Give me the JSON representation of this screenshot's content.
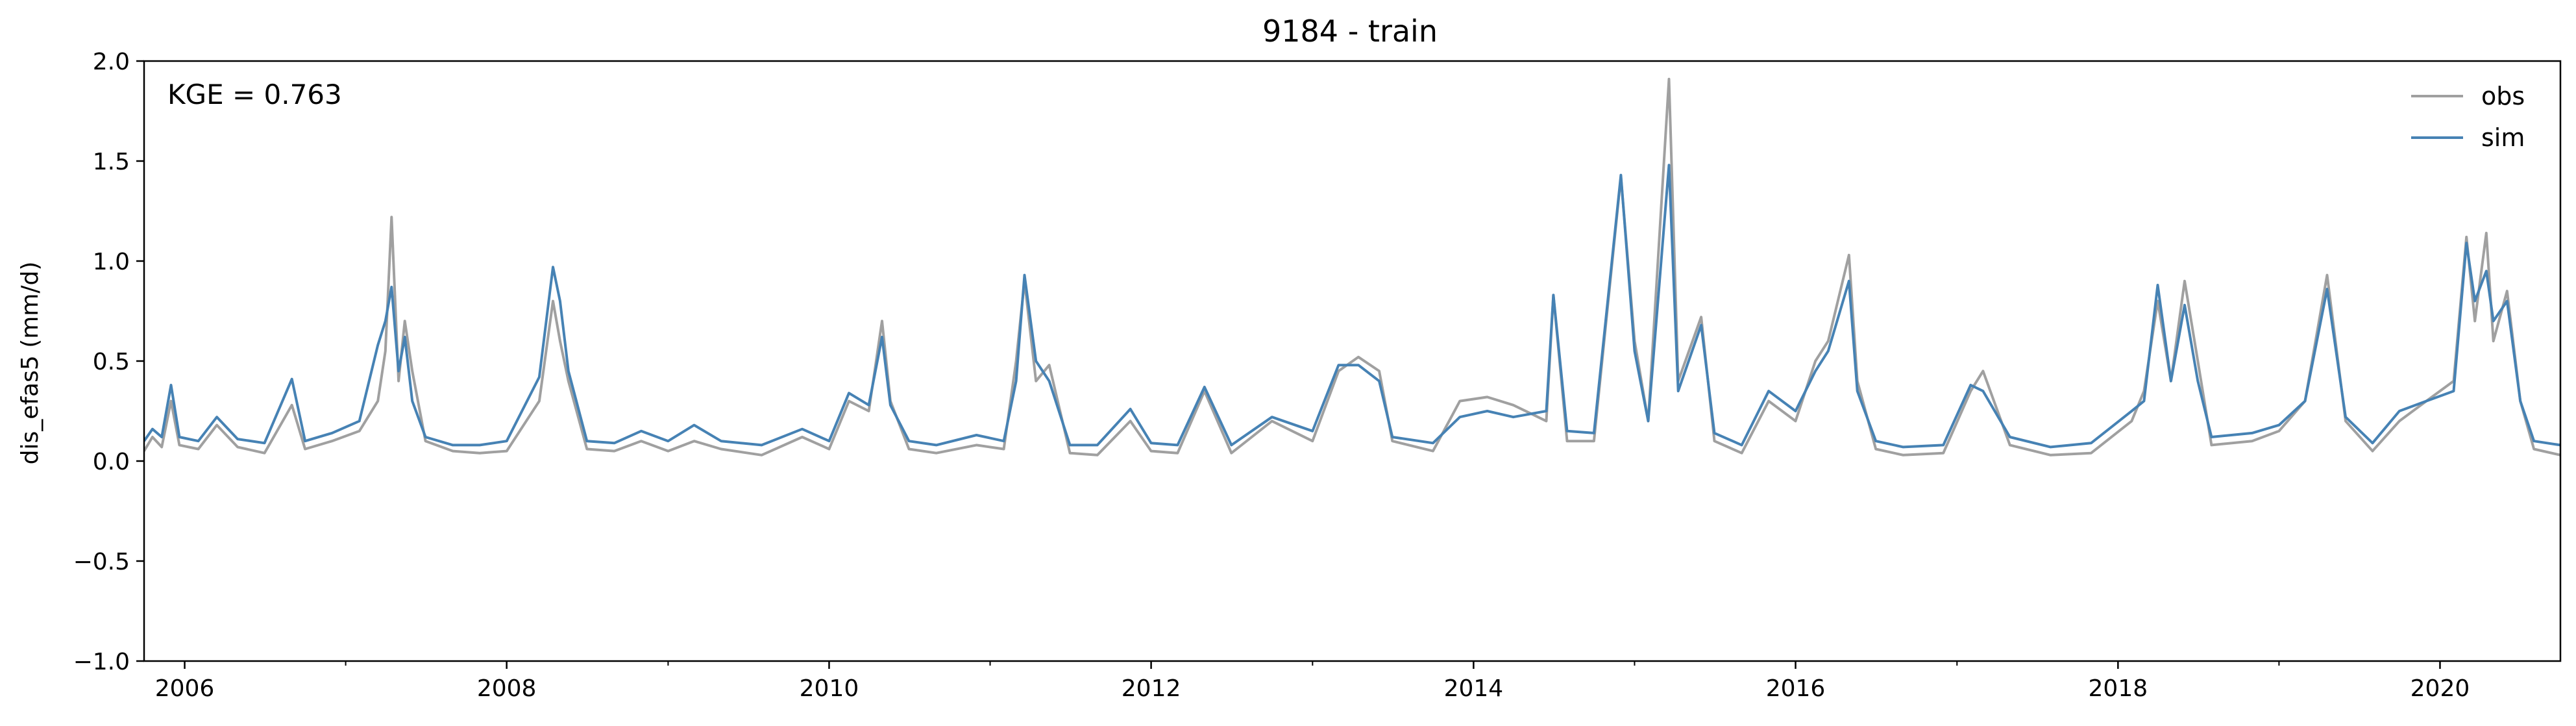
{
  "chart_data": {
    "type": "line",
    "title": "9184 - train",
    "xlabel": "",
    "ylabel": "dis_efas5 (mm/d)",
    "annotation": "KGE = 0.763",
    "x_range": [
      "2005-10-01",
      "2020-09-30"
    ],
    "ylim": [
      -1.0,
      2.0
    ],
    "yticks": [
      -1.0,
      -0.5,
      0.0,
      0.5,
      1.0,
      1.5,
      2.0
    ],
    "ytick_labels": [
      "−1.0",
      "−0.5",
      "0.0",
      "0.5",
      "1.0",
      "1.5",
      "2.0"
    ],
    "xticks": [
      "2006-01-01",
      "2008-01-01",
      "2010-01-01",
      "2012-01-01",
      "2014-01-01",
      "2016-01-01",
      "2018-01-01",
      "2020-01-01"
    ],
    "xtick_labels": [
      "2006",
      "2008",
      "2010",
      "2012",
      "2014",
      "2016",
      "2018",
      "2020"
    ],
    "x_minor_ticks": [
      "2007-01-01",
      "2009-01-01",
      "2011-01-01",
      "2013-01-01",
      "2015-01-01",
      "2017-01-01",
      "2019-01-01"
    ],
    "grid": false,
    "legend_position": "top-right",
    "series": [
      {
        "name": "obs",
        "color": "#a0a0a0",
        "points": [
          [
            "2005-10-01",
            0.05
          ],
          [
            "2005-10-20",
            0.12
          ],
          [
            "2005-11-10",
            0.07
          ],
          [
            "2005-12-01",
            0.3
          ],
          [
            "2005-12-20",
            0.08
          ],
          [
            "2006-02-01",
            0.06
          ],
          [
            "2006-03-15",
            0.18
          ],
          [
            "2006-05-01",
            0.07
          ],
          [
            "2006-07-01",
            0.04
          ],
          [
            "2006-09-01",
            0.28
          ],
          [
            "2006-10-01",
            0.06
          ],
          [
            "2006-12-01",
            0.1
          ],
          [
            "2007-02-01",
            0.15
          ],
          [
            "2007-03-15",
            0.3
          ],
          [
            "2007-04-01",
            0.55
          ],
          [
            "2007-04-15",
            1.22
          ],
          [
            "2007-05-01",
            0.4
          ],
          [
            "2007-05-15",
            0.7
          ],
          [
            "2007-06-01",
            0.45
          ],
          [
            "2007-07-01",
            0.1
          ],
          [
            "2007-09-01",
            0.05
          ],
          [
            "2007-11-01",
            0.04
          ],
          [
            "2008-01-01",
            0.05
          ],
          [
            "2008-03-15",
            0.3
          ],
          [
            "2008-04-15",
            0.8
          ],
          [
            "2008-05-01",
            0.6
          ],
          [
            "2008-05-20",
            0.4
          ],
          [
            "2008-07-01",
            0.06
          ],
          [
            "2008-09-01",
            0.05
          ],
          [
            "2008-11-01",
            0.1
          ],
          [
            "2009-01-01",
            0.05
          ],
          [
            "2009-03-01",
            0.1
          ],
          [
            "2009-05-01",
            0.06
          ],
          [
            "2009-08-01",
            0.03
          ],
          [
            "2009-11-01",
            0.12
          ],
          [
            "2010-01-01",
            0.06
          ],
          [
            "2010-02-15",
            0.3
          ],
          [
            "2010-04-01",
            0.25
          ],
          [
            "2010-05-01",
            0.7
          ],
          [
            "2010-05-20",
            0.3
          ],
          [
            "2010-07-01",
            0.06
          ],
          [
            "2010-09-01",
            0.04
          ],
          [
            "2010-12-01",
            0.08
          ],
          [
            "2011-02-01",
            0.06
          ],
          [
            "2011-03-01",
            0.5
          ],
          [
            "2011-03-20",
            0.9
          ],
          [
            "2011-04-15",
            0.4
          ],
          [
            "2011-05-15",
            0.48
          ],
          [
            "2011-07-01",
            0.04
          ],
          [
            "2011-09-01",
            0.03
          ],
          [
            "2011-11-15",
            0.2
          ],
          [
            "2012-01-01",
            0.05
          ],
          [
            "2012-03-01",
            0.04
          ],
          [
            "2012-05-01",
            0.35
          ],
          [
            "2012-07-01",
            0.04
          ],
          [
            "2012-10-01",
            0.2
          ],
          [
            "2013-01-01",
            0.1
          ],
          [
            "2013-03-01",
            0.45
          ],
          [
            "2013-04-15",
            0.52
          ],
          [
            "2013-06-01",
            0.45
          ],
          [
            "2013-07-01",
            0.1
          ],
          [
            "2013-10-01",
            0.05
          ],
          [
            "2013-12-01",
            0.3
          ],
          [
            "2014-02-01",
            0.32
          ],
          [
            "2014-04-01",
            0.28
          ],
          [
            "2014-06-15",
            0.2
          ],
          [
            "2014-07-01",
            0.83
          ],
          [
            "2014-08-01",
            0.1
          ],
          [
            "2014-10-01",
            0.1
          ],
          [
            "2014-12-01",
            1.42
          ],
          [
            "2015-01-01",
            0.6
          ],
          [
            "2015-02-01",
            0.2
          ],
          [
            "2015-03-20",
            1.91
          ],
          [
            "2015-04-10",
            0.4
          ],
          [
            "2015-06-01",
            0.72
          ],
          [
            "2015-07-01",
            0.1
          ],
          [
            "2015-09-01",
            0.04
          ],
          [
            "2015-11-01",
            0.3
          ],
          [
            "2016-01-01",
            0.2
          ],
          [
            "2016-02-15",
            0.5
          ],
          [
            "2016-03-15",
            0.6
          ],
          [
            "2016-05-01",
            1.03
          ],
          [
            "2016-05-20",
            0.4
          ],
          [
            "2016-07-01",
            0.06
          ],
          [
            "2016-09-01",
            0.03
          ],
          [
            "2016-12-01",
            0.04
          ],
          [
            "2017-02-01",
            0.35
          ],
          [
            "2017-03-01",
            0.45
          ],
          [
            "2017-05-01",
            0.08
          ],
          [
            "2017-08-01",
            0.03
          ],
          [
            "2017-11-01",
            0.04
          ],
          [
            "2018-02-01",
            0.2
          ],
          [
            "2018-03-01",
            0.35
          ],
          [
            "2018-04-01",
            0.8
          ],
          [
            "2018-05-01",
            0.4
          ],
          [
            "2018-06-01",
            0.9
          ],
          [
            "2018-07-01",
            0.5
          ],
          [
            "2018-08-01",
            0.08
          ],
          [
            "2018-11-01",
            0.1
          ],
          [
            "2019-01-01",
            0.15
          ],
          [
            "2019-03-01",
            0.3
          ],
          [
            "2019-04-20",
            0.93
          ],
          [
            "2019-06-01",
            0.2
          ],
          [
            "2019-08-01",
            0.05
          ],
          [
            "2019-10-01",
            0.2
          ],
          [
            "2019-12-01",
            0.3
          ],
          [
            "2020-02-01",
            0.4
          ],
          [
            "2020-03-01",
            1.12
          ],
          [
            "2020-03-20",
            0.7
          ],
          [
            "2020-04-15",
            1.14
          ],
          [
            "2020-05-01",
            0.6
          ],
          [
            "2020-06-01",
            0.85
          ],
          [
            "2020-07-01",
            0.3
          ],
          [
            "2020-08-01",
            0.06
          ],
          [
            "2020-09-30",
            0.03
          ]
        ]
      },
      {
        "name": "sim",
        "color": "#4682b4",
        "points": [
          [
            "2005-10-01",
            0.1
          ],
          [
            "2005-10-20",
            0.16
          ],
          [
            "2005-11-10",
            0.12
          ],
          [
            "2005-12-01",
            0.38
          ],
          [
            "2005-12-20",
            0.12
          ],
          [
            "2006-02-01",
            0.1
          ],
          [
            "2006-03-15",
            0.22
          ],
          [
            "2006-05-01",
            0.11
          ],
          [
            "2006-07-01",
            0.09
          ],
          [
            "2006-09-01",
            0.41
          ],
          [
            "2006-10-01",
            0.1
          ],
          [
            "2006-12-01",
            0.14
          ],
          [
            "2007-02-01",
            0.2
          ],
          [
            "2007-03-15",
            0.58
          ],
          [
            "2007-04-01",
            0.7
          ],
          [
            "2007-04-15",
            0.87
          ],
          [
            "2007-05-01",
            0.45
          ],
          [
            "2007-05-15",
            0.62
          ],
          [
            "2007-06-01",
            0.3
          ],
          [
            "2007-07-01",
            0.12
          ],
          [
            "2007-09-01",
            0.08
          ],
          [
            "2007-11-01",
            0.08
          ],
          [
            "2008-01-01",
            0.1
          ],
          [
            "2008-03-15",
            0.42
          ],
          [
            "2008-04-15",
            0.97
          ],
          [
            "2008-05-01",
            0.8
          ],
          [
            "2008-05-20",
            0.45
          ],
          [
            "2008-07-01",
            0.1
          ],
          [
            "2008-09-01",
            0.09
          ],
          [
            "2008-11-01",
            0.15
          ],
          [
            "2009-01-01",
            0.1
          ],
          [
            "2009-03-01",
            0.18
          ],
          [
            "2009-05-01",
            0.1
          ],
          [
            "2009-08-01",
            0.08
          ],
          [
            "2009-11-01",
            0.16
          ],
          [
            "2010-01-01",
            0.1
          ],
          [
            "2010-02-15",
            0.34
          ],
          [
            "2010-04-01",
            0.28
          ],
          [
            "2010-05-01",
            0.62
          ],
          [
            "2010-05-20",
            0.28
          ],
          [
            "2010-07-01",
            0.1
          ],
          [
            "2010-09-01",
            0.08
          ],
          [
            "2010-12-01",
            0.13
          ],
          [
            "2011-02-01",
            0.1
          ],
          [
            "2011-03-01",
            0.4
          ],
          [
            "2011-03-20",
            0.93
          ],
          [
            "2011-04-15",
            0.5
          ],
          [
            "2011-05-15",
            0.4
          ],
          [
            "2011-07-01",
            0.08
          ],
          [
            "2011-09-01",
            0.08
          ],
          [
            "2011-11-15",
            0.26
          ],
          [
            "2012-01-01",
            0.09
          ],
          [
            "2012-03-01",
            0.08
          ],
          [
            "2012-05-01",
            0.37
          ],
          [
            "2012-07-01",
            0.08
          ],
          [
            "2012-10-01",
            0.22
          ],
          [
            "2013-01-01",
            0.15
          ],
          [
            "2013-03-01",
            0.48
          ],
          [
            "2013-04-15",
            0.48
          ],
          [
            "2013-06-01",
            0.4
          ],
          [
            "2013-07-01",
            0.12
          ],
          [
            "2013-10-01",
            0.09
          ],
          [
            "2013-12-01",
            0.22
          ],
          [
            "2014-02-01",
            0.25
          ],
          [
            "2014-04-01",
            0.22
          ],
          [
            "2014-06-15",
            0.25
          ],
          [
            "2014-07-01",
            0.83
          ],
          [
            "2014-08-01",
            0.15
          ],
          [
            "2014-10-01",
            0.14
          ],
          [
            "2014-12-01",
            1.43
          ],
          [
            "2015-01-01",
            0.55
          ],
          [
            "2015-02-01",
            0.2
          ],
          [
            "2015-03-20",
            1.48
          ],
          [
            "2015-04-10",
            0.35
          ],
          [
            "2015-06-01",
            0.68
          ],
          [
            "2015-07-01",
            0.14
          ],
          [
            "2015-09-01",
            0.08
          ],
          [
            "2015-11-01",
            0.35
          ],
          [
            "2016-01-01",
            0.25
          ],
          [
            "2016-02-15",
            0.45
          ],
          [
            "2016-03-15",
            0.55
          ],
          [
            "2016-05-01",
            0.9
          ],
          [
            "2016-05-20",
            0.35
          ],
          [
            "2016-07-01",
            0.1
          ],
          [
            "2016-09-01",
            0.07
          ],
          [
            "2016-12-01",
            0.08
          ],
          [
            "2017-02-01",
            0.38
          ],
          [
            "2017-03-01",
            0.35
          ],
          [
            "2017-05-01",
            0.12
          ],
          [
            "2017-08-01",
            0.07
          ],
          [
            "2017-11-01",
            0.09
          ],
          [
            "2018-02-01",
            0.25
          ],
          [
            "2018-03-01",
            0.3
          ],
          [
            "2018-04-01",
            0.88
          ],
          [
            "2018-05-01",
            0.4
          ],
          [
            "2018-06-01",
            0.78
          ],
          [
            "2018-07-01",
            0.4
          ],
          [
            "2018-08-01",
            0.12
          ],
          [
            "2018-11-01",
            0.14
          ],
          [
            "2019-01-01",
            0.18
          ],
          [
            "2019-03-01",
            0.3
          ],
          [
            "2019-04-20",
            0.86
          ],
          [
            "2019-06-01",
            0.22
          ],
          [
            "2019-08-01",
            0.09
          ],
          [
            "2019-10-01",
            0.25
          ],
          [
            "2019-12-01",
            0.3
          ],
          [
            "2020-02-01",
            0.35
          ],
          [
            "2020-03-01",
            1.09
          ],
          [
            "2020-03-20",
            0.8
          ],
          [
            "2020-04-15",
            0.95
          ],
          [
            "2020-05-01",
            0.7
          ],
          [
            "2020-06-01",
            0.8
          ],
          [
            "2020-07-01",
            0.3
          ],
          [
            "2020-08-01",
            0.1
          ],
          [
            "2020-09-30",
            0.08
          ]
        ]
      }
    ]
  }
}
